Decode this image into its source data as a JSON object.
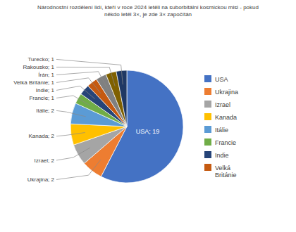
{
  "chart_data": {
    "type": "pie",
    "title": "Národnostní rozdělení lidí, kteří v roce 2024 letěli na suborbitální kosmickou misi - pokud\nněkdo letěl 3×, je zde 3× započítán",
    "categories": [
      "USA",
      "Ukrajina",
      "Izrael",
      "Kanada",
      "Itálie",
      "Francie",
      "Indie",
      "Velká Británie",
      "Írán",
      "Rakousko",
      "Turecko"
    ],
    "values": [
      19,
      2,
      2,
      2,
      2,
      1,
      1,
      1,
      1,
      1,
      1
    ],
    "colors": [
      "#4472C4",
      "#ED7D31",
      "#A5A5A5",
      "#FFC000",
      "#5B9BD5",
      "#70AD47",
      "#264478",
      "#C55A11",
      "#808080",
      "#7F6000",
      "#1F3864"
    ],
    "data_labels": true,
    "value_labels": [
      "USA; 19",
      "Ukrajina; 2",
      "Izrael; 2",
      "Kanada; 2",
      "Itálie; 2",
      "Francie; 1",
      "Indie; 1",
      "Velká Británie; 1",
      "Írán; 1",
      "Rakousko; 1",
      "Turecko; 1"
    ],
    "legend": "right",
    "legend_labels": [
      "USA",
      "Ukrajina",
      "Izrael",
      "Kanada",
      "Itálie",
      "Francie",
      "Indie",
      "Velká\nBritánie"
    ]
  }
}
